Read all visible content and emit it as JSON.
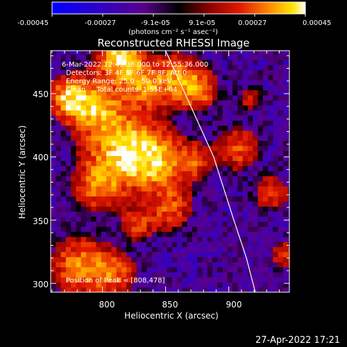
{
  "chart_data": {
    "type": "heatmap",
    "title": "Reconstructed RHESSI Image",
    "xlabel": "Heliocentric X (arcsec)",
    "ylabel": "Heliocentric Y (arcsec)",
    "xlim": [
      759,
      948
    ],
    "ylim": [
      293,
      484
    ],
    "xticks": [
      "800",
      "850",
      "900"
    ],
    "yticks": [
      "300",
      "350",
      "400",
      "450"
    ],
    "colorbar": {
      "unit_label": "(photons cm⁻² s⁻¹ asec⁻²)",
      "tick_labels": [
        "-0.00045",
        "-0.00027",
        "-9.1e-05",
        "9.1e-05",
        "0.00027",
        "0.00045"
      ],
      "range": [
        -0.00045,
        0.00045
      ]
    },
    "annotations": {
      "time_range": "6-Mar-2022 12:49:36.000 to 12:55:36.000",
      "detectors": "Detectors: 3F 4F 5F 6F 7F 8F, Att 0",
      "energy_range": "Energy Range: 25.0 - 50.0 keV",
      "method": "Clean     Total counts: 1.55E+04",
      "peak": "Position of Peak = [808,478]"
    },
    "limb": [
      [
        850,
        484
      ],
      [
        870,
        440
      ],
      [
        888,
        400
      ],
      [
        904,
        350
      ],
      [
        914,
        320
      ],
      [
        921,
        293
      ]
    ],
    "emission_regions": [
      {
        "x": 812,
        "y": 478,
        "amplitude": 1.0,
        "width": 12
      },
      {
        "x": 790,
        "y": 440,
        "amplitude": 0.8,
        "width": 16
      },
      {
        "x": 770,
        "y": 445,
        "amplitude": 0.7,
        "width": 10
      },
      {
        "x": 830,
        "y": 455,
        "amplitude": 0.65,
        "width": 12
      },
      {
        "x": 858,
        "y": 460,
        "amplitude": 0.7,
        "width": 14
      },
      {
        "x": 875,
        "y": 450,
        "amplitude": 0.55,
        "width": 10
      },
      {
        "x": 815,
        "y": 405,
        "amplitude": 0.85,
        "width": 20
      },
      {
        "x": 840,
        "y": 395,
        "amplitude": 0.7,
        "width": 16
      },
      {
        "x": 795,
        "y": 375,
        "amplitude": 0.6,
        "width": 14
      },
      {
        "x": 870,
        "y": 395,
        "amplitude": 0.5,
        "width": 10
      },
      {
        "x": 852,
        "y": 358,
        "amplitude": 0.55,
        "width": 12
      },
      {
        "x": 826,
        "y": 345,
        "amplitude": 0.45,
        "width": 10
      },
      {
        "x": 780,
        "y": 312,
        "amplitude": 0.7,
        "width": 16
      },
      {
        "x": 808,
        "y": 305,
        "amplitude": 0.55,
        "width": 12
      },
      {
        "x": 905,
        "y": 405,
        "amplitude": 0.55,
        "width": 12
      },
      {
        "x": 932,
        "y": 370,
        "amplitude": 0.5,
        "width": 10
      },
      {
        "x": 942,
        "y": 320,
        "amplitude": 0.45,
        "width": 8
      },
      {
        "x": 915,
        "y": 445,
        "amplitude": 0.35,
        "width": 8
      }
    ]
  },
  "footer": {
    "timestamp": "27-Apr-2022 17:21"
  }
}
